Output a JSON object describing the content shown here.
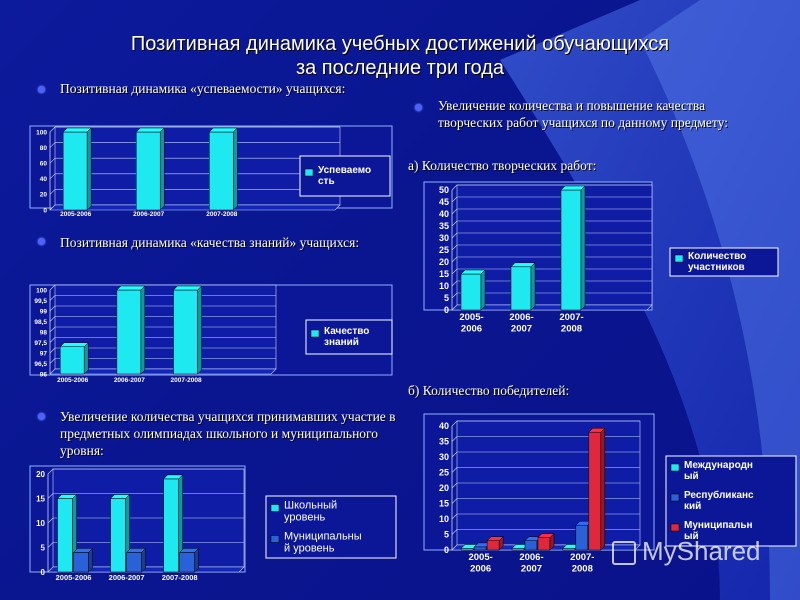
{
  "title": {
    "line1": "Позитивная динамика учебных достижений обучающихся",
    "line2": "за последние три года"
  },
  "bullets": {
    "b1": "Позитивная  динамика «успеваемости» учащихся:",
    "b2": "Позитивная динамика «качества знаний» учащихся:",
    "b3": "Увеличение количества учащихся принимавших участие в предметных олимпиадах школьного и муниципального уровня:",
    "b4": "Увеличение количества и повышение качества творческих работ  учащихся по данному предмету:"
  },
  "subtitles": {
    "a": "а) Количество творческих работ:",
    "b": "б) Количество победителей:"
  },
  "watermark": "MyShared",
  "colors": {
    "cyan": "#1ee8f0",
    "blue": "#2a60d8",
    "red": "#e0283c",
    "background": "#0a1690"
  },
  "chart_data": [
    {
      "id": "success",
      "type": "bar",
      "categories": [
        "2005-2006",
        "2006-2007",
        "2007-2008"
      ],
      "series": [
        {
          "name": "Успеваемо сть",
          "values": [
            100,
            100,
            100
          ],
          "color": "#1ee8f0"
        }
      ],
      "yticks": [
        "0",
        "20",
        "40",
        "60",
        "80",
        "100"
      ],
      "ylim": [
        0,
        100
      ],
      "grid": true,
      "legend": "right"
    },
    {
      "id": "quality",
      "type": "bar",
      "categories": [
        "2005-2006",
        "2006-2007",
        "2007-2008"
      ],
      "series": [
        {
          "name": "Качество знаний",
          "values": [
            97.3,
            100,
            100
          ],
          "color": "#1ee8f0"
        }
      ],
      "yticks": [
        "96",
        "96,5",
        "97",
        "97,5",
        "98",
        "98,5",
        "99",
        "99,5",
        "100"
      ],
      "ylim": [
        96,
        100
      ],
      "grid": true,
      "legend": "right"
    },
    {
      "id": "olympiads",
      "type": "bar",
      "categories": [
        "2005-2006",
        "2006-2007",
        "2007-2008"
      ],
      "series": [
        {
          "name": "Школьный уровень",
          "values": [
            15,
            15,
            19
          ],
          "color": "#1ee8f0"
        },
        {
          "name": "Муниципальны й уровень",
          "values": [
            4,
            4,
            4
          ],
          "color": "#2a60d8"
        }
      ],
      "yticks": [
        "0",
        "5",
        "10",
        "15",
        "20"
      ],
      "ylim": [
        0,
        20
      ],
      "grid": true,
      "legend": "right"
    },
    {
      "id": "creative",
      "type": "bar",
      "categories": [
        "2005- 2006",
        "2006- 2007",
        "2007- 2008"
      ],
      "series": [
        {
          "name": "Количество участников",
          "values": [
            15,
            18,
            50
          ],
          "color": "#1ee8f0"
        }
      ],
      "yticks": [
        "0",
        "5",
        "10",
        "15",
        "20",
        "25",
        "30",
        "35",
        "40",
        "45",
        "50"
      ],
      "ylim": [
        0,
        50
      ],
      "grid": true,
      "legend": "right"
    },
    {
      "id": "winners",
      "type": "bar",
      "categories": [
        "2005- 2006",
        "2006- 2007",
        "2007- 2008"
      ],
      "series": [
        {
          "name": "Международн ый",
          "values": [
            0.5,
            0.5,
            0.5
          ],
          "color": "#1ee8f0"
        },
        {
          "name": "Республиканс кий",
          "values": [
            1,
            3,
            8
          ],
          "color": "#2a60d8"
        },
        {
          "name": "Муниципальн ый",
          "values": [
            3,
            4,
            38
          ],
          "color": "#e0283c"
        }
      ],
      "yticks": [
        "0",
        "5",
        "10",
        "15",
        "20",
        "25",
        "30",
        "35",
        "40"
      ],
      "ylim": [
        0,
        40
      ],
      "grid": true,
      "legend": "right"
    }
  ]
}
